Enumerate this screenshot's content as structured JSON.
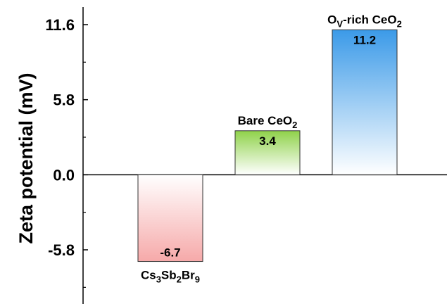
{
  "chart_data": {
    "type": "bar",
    "ylabel": "Zeta potential (mV)",
    "ylim": [
      -8.9,
      13.0
    ],
    "yticks": [
      "11.6",
      "5.8",
      "0.0",
      "-5.8"
    ],
    "ytick_values": [
      11.6,
      5.8,
      0.0,
      -5.8
    ],
    "minor_ticks": true,
    "categories": [
      {
        "base": "Cs",
        "sub1": "3",
        "mid": "Sb",
        "sub2": "2",
        "mid2": "Br",
        "sub3": "9"
      },
      {
        "base": "Bare CeO",
        "sub1": "2"
      },
      {
        "base": "O",
        "sub1": "V",
        "mid": "-rich CeO",
        "sub2": "2"
      }
    ],
    "values": [
      -6.7,
      3.4,
      11.2
    ],
    "value_labels": [
      "-6.7",
      "3.4",
      "11.2"
    ],
    "colors": [
      "#f6a9a9",
      "#8fd24a",
      "#3b9ae8"
    ]
  }
}
